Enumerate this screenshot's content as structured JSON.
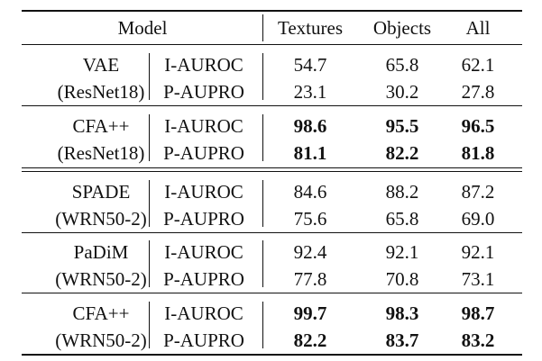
{
  "header": {
    "model": "Model",
    "textures": "Textures",
    "objects": "Objects",
    "all": "All"
  },
  "groups": [
    {
      "name": "VAE",
      "backbone": "(ResNet18)",
      "bold": false,
      "rows": [
        {
          "metric": "I-AUROC",
          "textures": "54.7",
          "objects": "65.8",
          "all": "62.1"
        },
        {
          "metric": "P-AUPRO",
          "textures": "23.1",
          "objects": "30.2",
          "all": "27.8"
        }
      ]
    },
    {
      "name": "CFA++",
      "backbone": "(ResNet18)",
      "bold": true,
      "rows": [
        {
          "metric": "I-AUROC",
          "textures": "98.6",
          "objects": "95.5",
          "all": "96.5"
        },
        {
          "metric": "P-AUPRO",
          "textures": "81.1",
          "objects": "82.2",
          "all": "81.8"
        }
      ]
    },
    {
      "name": "SPADE",
      "backbone": "(WRN50-2)",
      "bold": false,
      "rows": [
        {
          "metric": "I-AUROC",
          "textures": "84.6",
          "objects": "88.2",
          "all": "87.2"
        },
        {
          "metric": "P-AUPRO",
          "textures": "75.6",
          "objects": "65.8",
          "all": "69.0"
        }
      ]
    },
    {
      "name": "PaDiM",
      "backbone": "(WRN50-2)",
      "bold": false,
      "rows": [
        {
          "metric": "I-AUROC",
          "textures": "92.4",
          "objects": "92.1",
          "all": "92.1"
        },
        {
          "metric": "P-AUPRO",
          "textures": "77.8",
          "objects": "70.8",
          "all": "73.1"
        }
      ]
    },
    {
      "name": "CFA++",
      "backbone": "(WRN50-2)",
      "bold": true,
      "rows": [
        {
          "metric": "I-AUROC",
          "textures": "99.7",
          "objects": "98.3",
          "all": "98.7"
        },
        {
          "metric": "P-AUPRO",
          "textures": "82.2",
          "objects": "83.7",
          "all": "83.2"
        }
      ]
    }
  ]
}
